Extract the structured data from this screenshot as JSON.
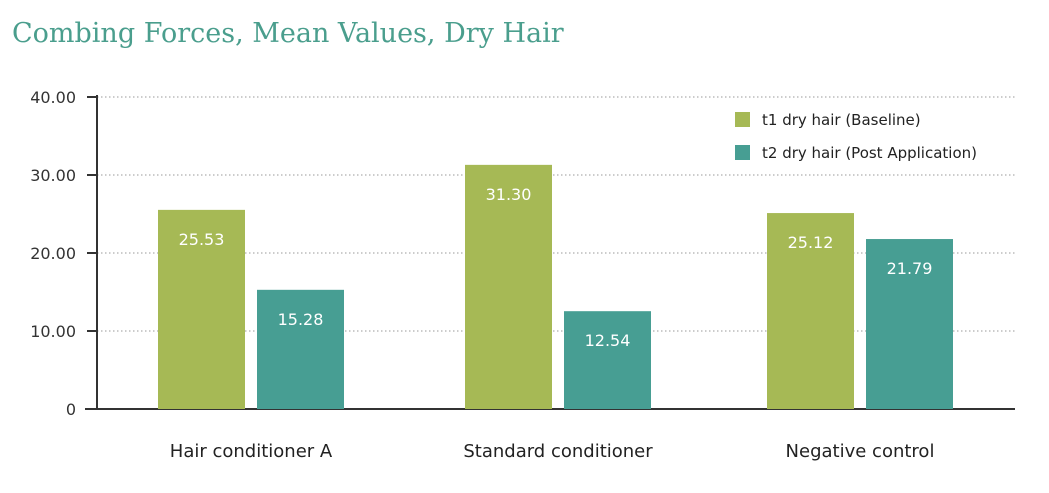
{
  "chart_data": {
    "type": "bar",
    "title": "Combing Forces, Mean Values, Dry Hair",
    "categories": [
      "Hair conditioner A",
      "Standard conditioner",
      "Negative control"
    ],
    "series": [
      {
        "name": "t1 dry hair (Baseline)",
        "values": [
          25.53,
          31.3,
          25.12
        ],
        "labels": [
          "25.53",
          "31.30",
          "25.12"
        ],
        "color": "#a6b955"
      },
      {
        "name": "t2 dry hair (Post Application)",
        "values": [
          15.28,
          12.54,
          21.79
        ],
        "labels": [
          "15.28",
          "12.54",
          "21.79"
        ],
        "color": "#479e93"
      }
    ],
    "ylim": [
      0,
      40
    ],
    "yticks": [
      0,
      10,
      20,
      30,
      40
    ],
    "ytick_labels": [
      "0",
      "10.00",
      "20.00",
      "30.00",
      "40.00"
    ],
    "grid": true,
    "legend_position": "top-right",
    "title_color": "#4a9e8d",
    "axis_color": "#333333"
  }
}
